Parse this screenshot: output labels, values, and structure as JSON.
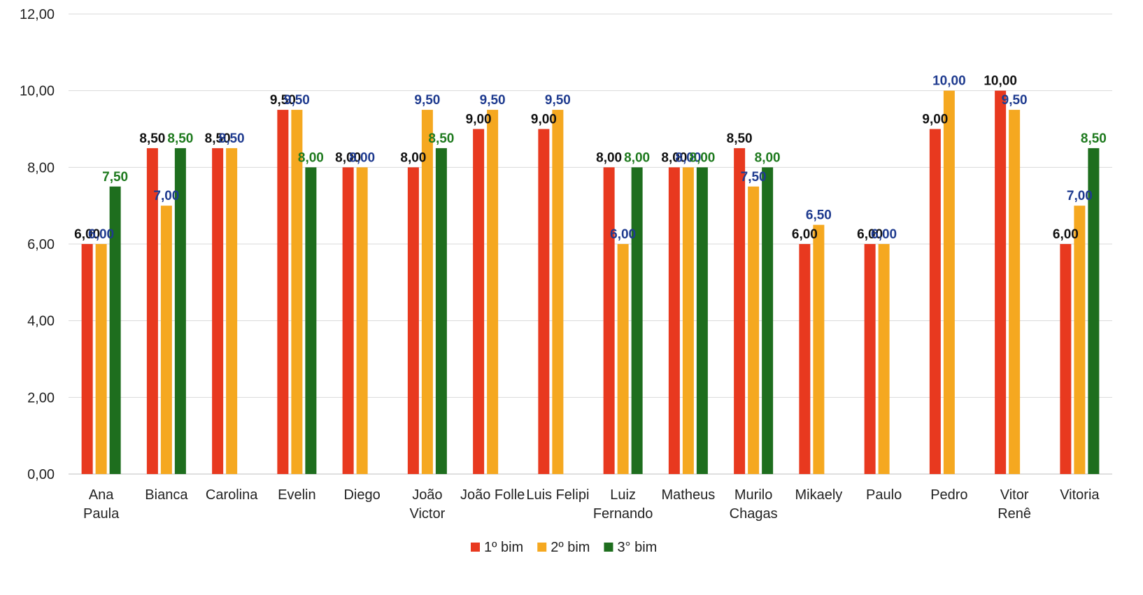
{
  "chart_data": {
    "type": "bar",
    "ylim": [
      0,
      12
    ],
    "y_ticks": [
      "0,00",
      "2,00",
      "4,00",
      "6,00",
      "8,00",
      "10,00",
      "12,00"
    ],
    "grid": true,
    "legend_position": "bottom",
    "categories": [
      [
        "Ana",
        "Paula"
      ],
      [
        "Bianca"
      ],
      [
        "Carolina"
      ],
      [
        "Evelin"
      ],
      [
        "Diego"
      ],
      [
        "João",
        "Victor"
      ],
      [
        "João Folle"
      ],
      [
        "Luis Felipi"
      ],
      [
        "Luiz",
        "Fernando"
      ],
      [
        "Matheus"
      ],
      [
        "Murilo",
        "Chagas"
      ],
      [
        "Mikaely"
      ],
      [
        "Paulo"
      ],
      [
        "Pedro"
      ],
      [
        "Vitor",
        "Renê"
      ],
      [
        "Vitoria"
      ]
    ],
    "series": [
      {
        "name": "1º bim",
        "color": "#e8391f",
        "label_color": "#111111",
        "values": [
          6.0,
          8.5,
          8.5,
          9.5,
          8.0,
          8.0,
          9.0,
          9.0,
          8.0,
          8.0,
          8.5,
          6.0,
          6.0,
          9.0,
          10.0,
          6.0
        ],
        "labels": [
          "6,00",
          "8,50",
          "8,50",
          "9,50",
          "8,00",
          "8,00",
          "9,00",
          "9,00",
          "8,00",
          "8,00",
          "8,50",
          "6,00",
          "6,00",
          "9,00",
          "10,00",
          "6,00"
        ]
      },
      {
        "name": "2º bim",
        "color": "#f5a820",
        "label_color": "#1f3b8f",
        "values": [
          6.0,
          7.0,
          8.5,
          9.5,
          8.0,
          9.5,
          9.5,
          9.5,
          6.0,
          8.0,
          7.5,
          6.5,
          6.0,
          10.0,
          9.5,
          7.0
        ],
        "labels": [
          "6,00",
          "7,00",
          "8,50",
          "9,50",
          "8,00",
          "9,50",
          "9,50",
          "9,50",
          "6,00",
          "8,00",
          "7,50",
          "6,50",
          "6,00",
          "10,00",
          "9,50",
          "7,00"
        ]
      },
      {
        "name": "3° bim",
        "color": "#1e6e1e",
        "label_color": "#1e7a1e",
        "values": [
          7.5,
          8.5,
          null,
          8.0,
          null,
          8.5,
          null,
          null,
          8.0,
          8.0,
          8.0,
          null,
          null,
          null,
          null,
          8.5
        ],
        "labels": [
          "7,50",
          "8,50",
          null,
          "8,00",
          null,
          "8,50",
          null,
          null,
          "8,00",
          "8,00",
          "8,00",
          null,
          null,
          null,
          null,
          "8,50"
        ]
      }
    ]
  }
}
